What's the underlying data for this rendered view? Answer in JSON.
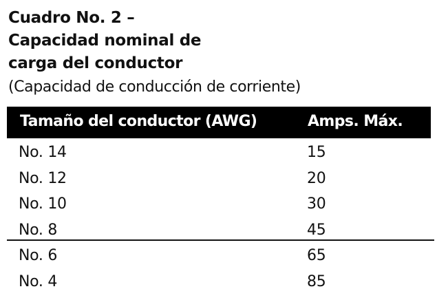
{
  "title_lines": [
    "Cuadro No. 2 –",
    "Capacidad nominal de",
    "carga del conductor"
  ],
  "subtitle": "(Capacidad de conducción de corriente)",
  "table": {
    "headers": [
      "Tamaño del conductor (AWG)",
      "Amps. Máx."
    ],
    "rows": [
      [
        "No. 14",
        "15"
      ],
      [
        "No. 12",
        "20"
      ],
      [
        "No. 10",
        "30"
      ],
      [
        "No. 8",
        "45"
      ],
      [
        "No. 6",
        "65"
      ],
      [
        "No. 4",
        "85"
      ]
    ]
  }
}
